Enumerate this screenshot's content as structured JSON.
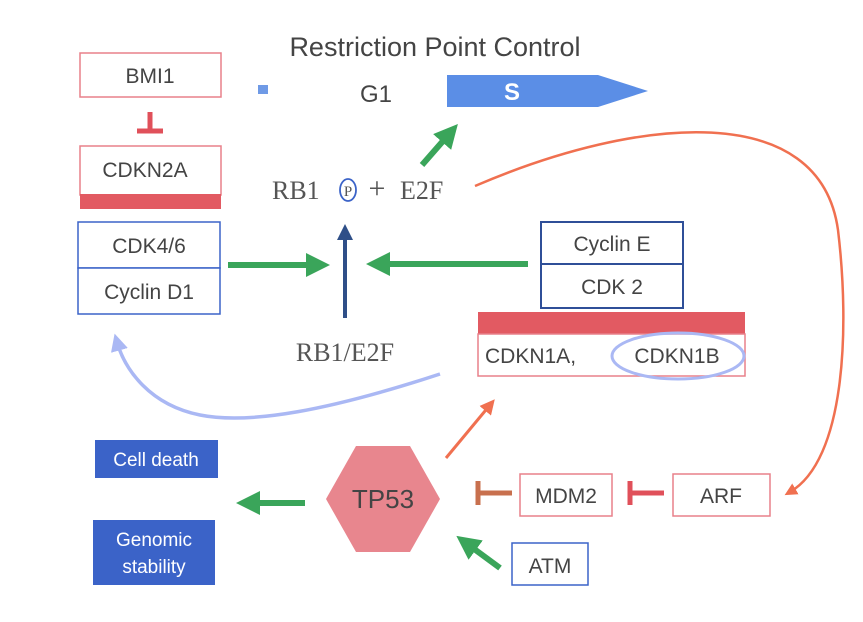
{
  "title": "Restriction Point Control",
  "phases": {
    "g1": "G1",
    "s": "S"
  },
  "nodes": {
    "bmi1": "BMI1",
    "cdkn2a": "CDKN2A",
    "cdk46": "CDK4/6",
    "cyclin_d1": "Cyclin D1",
    "rb1": "RB1",
    "phospho": "P",
    "plus": "+",
    "e2f": "E2F",
    "rb1_e2f": "RB1/E2F",
    "cyclin_e": "Cyclin E",
    "cdk2": "CDK 2",
    "cdkn1a": "CDKN1A,",
    "cdkn1b": "CDKN1B",
    "cell_death": "Cell death",
    "genomic_stability_1": "Genomic",
    "genomic_stability_2": "stability",
    "tp53": "TP53",
    "mdm2": "MDM2",
    "arf": "ARF",
    "atm": "ATM"
  },
  "colors": {
    "activation": "#3aa55a",
    "inhibition": "#e0505a",
    "blue_box": "#3b63c8",
    "pink_border": "#e8808a",
    "tp53_fill": "#e8868e",
    "orange": "#f07050",
    "light_blue": "#aab8f4",
    "dark_blue": "#2f4f88"
  }
}
